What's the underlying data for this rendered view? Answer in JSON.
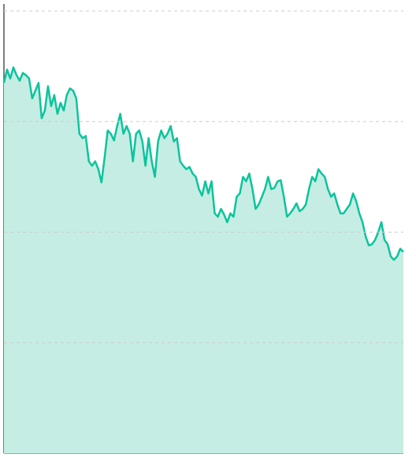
{
  "chart_data": {
    "type": "area",
    "color": "#0cc49c",
    "fill": "#c5ede4",
    "values": [
      335,
      347,
      339,
      349,
      342,
      337,
      344,
      342,
      339,
      321,
      328,
      335,
      303,
      310,
      332,
      314,
      324,
      307,
      317,
      310,
      324,
      330,
      328,
      321,
      289,
      285,
      287,
      264,
      260,
      264,
      257,
      245,
      267,
      292,
      289,
      283,
      296,
      307,
      289,
      296,
      289,
      264,
      289,
      292,
      282,
      260,
      285,
      264,
      250,
      282,
      292,
      285,
      289,
      296,
      282,
      285,
      264,
      260,
      257,
      259,
      253,
      250,
      239,
      233,
      246,
      235,
      246,
      217,
      214,
      221,
      216,
      209,
      217,
      214,
      232,
      235,
      250,
      246,
      253,
      239,
      221,
      225,
      232,
      239,
      250,
      239,
      240,
      246,
      247,
      232,
      214,
      217,
      221,
      226,
      219,
      221,
      225,
      239,
      250,
      246,
      257,
      253,
      250,
      239,
      232,
      235,
      225,
      217,
      217,
      221,
      225,
      235,
      228,
      217,
      209,
      196,
      188,
      189,
      193,
      200,
      209,
      193,
      189,
      178,
      175,
      178,
      185,
      182
    ],
    "ylim": [
      0,
      400
    ],
    "yticks": [
      100,
      200,
      300,
      400
    ],
    "grid": true
  }
}
